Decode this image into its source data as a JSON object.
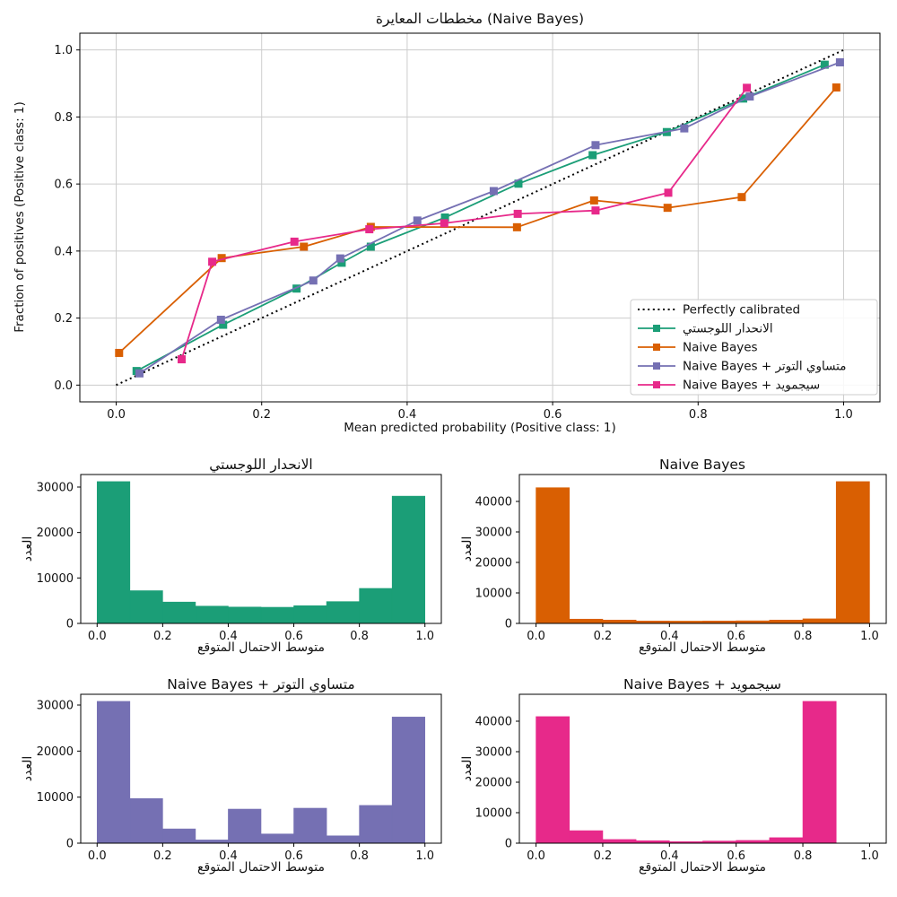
{
  "figure": {
    "background": "#ffffff",
    "palette": {
      "logistic": "#1b9e77",
      "naive_bayes": "#d95f02",
      "isotonic": "#7570b3",
      "sigmoid": "#e7298a",
      "reference": "#000000",
      "grid": "#cccccc"
    }
  },
  "chart_data": [
    {
      "type": "line",
      "key": "calibration-curves",
      "title": "مخططات المعايرة (Naive Bayes)",
      "xlabel": "Mean predicted probability (Positive class: 1)",
      "ylabel": "Fraction of positives (Positive class: 1)",
      "xlim": [
        -0.05,
        1.05
      ],
      "ylim": [
        -0.05,
        1.05
      ],
      "xticks": [
        0.0,
        0.2,
        0.4,
        0.6,
        0.8,
        1.0
      ],
      "yticks": [
        0.0,
        0.2,
        0.4,
        0.6,
        0.8,
        1.0
      ],
      "grid": true,
      "legend_position": "lower right",
      "series": [
        {
          "key": "perfectly-calibrated",
          "name": "Perfectly calibrated",
          "color": "#000000",
          "linestyle": "dotted",
          "marker": "none",
          "points": [
            [
              0.0,
              0.0
            ],
            [
              1.0,
              1.0
            ]
          ]
        },
        {
          "key": "logistic-regression",
          "name": "الانحدار اللوجستي",
          "color": "#1b9e77",
          "linestyle": "solid",
          "marker": "square",
          "points": [
            [
              0.028,
              0.042
            ],
            [
              0.147,
              0.18
            ],
            [
              0.248,
              0.288
            ],
            [
              0.31,
              0.365
            ],
            [
              0.35,
              0.413
            ],
            [
              0.452,
              0.5
            ],
            [
              0.553,
              0.601
            ],
            [
              0.655,
              0.686
            ],
            [
              0.757,
              0.755
            ],
            [
              0.862,
              0.855
            ],
            [
              0.974,
              0.956
            ]
          ]
        },
        {
          "key": "naive-bayes",
          "name": "Naive Bayes",
          "color": "#d95f02",
          "linestyle": "solid",
          "marker": "square",
          "points": [
            [
              0.004,
              0.096
            ],
            [
              0.145,
              0.379
            ],
            [
              0.258,
              0.413
            ],
            [
              0.35,
              0.472
            ],
            [
              0.551,
              0.471
            ],
            [
              0.657,
              0.551
            ],
            [
              0.758,
              0.529
            ],
            [
              0.86,
              0.561
            ],
            [
              0.99,
              0.888
            ]
          ]
        },
        {
          "key": "naive-bayes-isotonic",
          "name": "Naive Bayes + متساوي التوتر",
          "color": "#7570b3",
          "linestyle": "solid",
          "marker": "square",
          "points": [
            [
              0.032,
              0.035
            ],
            [
              0.144,
              0.195
            ],
            [
              0.271,
              0.312
            ],
            [
              0.308,
              0.378
            ],
            [
              0.414,
              0.491
            ],
            [
              0.519,
              0.579
            ],
            [
              0.659,
              0.716
            ],
            [
              0.781,
              0.766
            ],
            [
              0.871,
              0.861
            ],
            [
              0.995,
              0.963
            ]
          ]
        },
        {
          "key": "naive-bayes-sigmoid",
          "name": "Naive Bayes + سيجمويد",
          "color": "#e7298a",
          "linestyle": "solid",
          "marker": "square",
          "points": [
            [
              0.09,
              0.077
            ],
            [
              0.132,
              0.368
            ],
            [
              0.245,
              0.428
            ],
            [
              0.348,
              0.465
            ],
            [
              0.451,
              0.483
            ],
            [
              0.552,
              0.511
            ],
            [
              0.659,
              0.521
            ],
            [
              0.759,
              0.574
            ],
            [
              0.867,
              0.887
            ]
          ]
        }
      ]
    },
    {
      "type": "bar",
      "key": "hist-logistic-regression",
      "title": "الانحدار اللوجستي",
      "xlabel": "متوسط الاحتمال المتوقع",
      "ylabel": "العدد",
      "color": "#1b9e77",
      "bin_edges": [
        0.0,
        0.1,
        0.2,
        0.3,
        0.4,
        0.5,
        0.6,
        0.7,
        0.8,
        0.9,
        1.0
      ],
      "values": [
        31200,
        7200,
        4700,
        3800,
        3600,
        3550,
        3900,
        4800,
        7700,
        28000
      ],
      "xticks": [
        0.0,
        0.2,
        0.4,
        0.6,
        0.8,
        1.0
      ],
      "yticks": [
        0,
        10000,
        20000,
        30000
      ],
      "xlim": [
        -0.05,
        1.05
      ],
      "ylim": [
        0,
        32760
      ],
      "grid": false
    },
    {
      "type": "bar",
      "key": "hist-naive-bayes",
      "title": "Naive Bayes",
      "xlabel": "متوسط الاحتمال المتوقع",
      "ylabel": "العدد",
      "color": "#d95f02",
      "bin_edges": [
        0.0,
        0.1,
        0.2,
        0.3,
        0.4,
        0.5,
        0.6,
        0.7,
        0.8,
        0.9,
        1.0
      ],
      "values": [
        44500,
        1400,
        1100,
        800,
        750,
        800,
        850,
        1100,
        1500,
        46500
      ],
      "xticks": [
        0.0,
        0.2,
        0.4,
        0.6,
        0.8,
        1.0
      ],
      "yticks": [
        0,
        10000,
        20000,
        30000,
        40000
      ],
      "xlim": [
        -0.05,
        1.05
      ],
      "ylim": [
        0,
        48825
      ],
      "grid": false
    },
    {
      "type": "bar",
      "key": "hist-naive-bayes-isotonic",
      "title": "Naive Bayes + متساوي التوتر",
      "xlabel": "متوسط الاحتمال المتوقع",
      "ylabel": "العدد",
      "color": "#7570b3",
      "bin_edges": [
        0.0,
        0.1,
        0.2,
        0.3,
        0.4,
        0.5,
        0.6,
        0.7,
        0.8,
        0.9,
        1.0
      ],
      "values": [
        30800,
        9700,
        3100,
        700,
        7400,
        2000,
        7600,
        1600,
        8200,
        27400
      ],
      "xticks": [
        0.0,
        0.2,
        0.4,
        0.6,
        0.8,
        1.0
      ],
      "yticks": [
        0,
        10000,
        20000,
        30000
      ],
      "xlim": [
        -0.05,
        1.05
      ],
      "ylim": [
        0,
        32340
      ],
      "grid": false
    },
    {
      "type": "bar",
      "key": "hist-naive-bayes-sigmoid",
      "title": "Naive Bayes + سيجمويد",
      "xlabel": "متوسط الاحتمال المتوقع",
      "ylabel": "العدد",
      "color": "#e7298a",
      "bin_edges": [
        0.0,
        0.1,
        0.2,
        0.3,
        0.4,
        0.5,
        0.6,
        0.7,
        0.8,
        0.9,
        1.0
      ],
      "values": [
        41500,
        4100,
        1200,
        800,
        500,
        700,
        900,
        1800,
        46500,
        0
      ],
      "xticks": [
        0.0,
        0.2,
        0.4,
        0.6,
        0.8,
        1.0
      ],
      "yticks": [
        0,
        10000,
        20000,
        30000,
        40000
      ],
      "xlim": [
        -0.05,
        1.05
      ],
      "ylim": [
        0,
        48825
      ],
      "grid": false
    }
  ]
}
